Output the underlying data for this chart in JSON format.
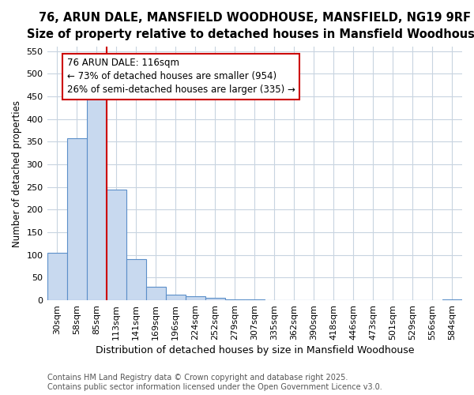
{
  "title": "76, ARUN DALE, MANSFIELD WOODHOUSE, MANSFIELD, NG19 9RF",
  "subtitle": "Size of property relative to detached houses in Mansfield Woodhouse",
  "xlabel": "Distribution of detached houses by size in Mansfield Woodhouse",
  "ylabel": "Number of detached properties",
  "bar_labels": [
    "30sqm",
    "58sqm",
    "85sqm",
    "113sqm",
    "141sqm",
    "169sqm",
    "196sqm",
    "224sqm",
    "252sqm",
    "279sqm",
    "307sqm",
    "335sqm",
    "362sqm",
    "390sqm",
    "418sqm",
    "446sqm",
    "473sqm",
    "501sqm",
    "529sqm",
    "556sqm",
    "584sqm"
  ],
  "bar_values": [
    104,
    357,
    455,
    245,
    91,
    30,
    13,
    8,
    5,
    2,
    1,
    0,
    0,
    0,
    0,
    0,
    0,
    0,
    0,
    0,
    2
  ],
  "bar_color": "#c8d9ef",
  "bar_edge_color": "#5b8fc9",
  "vline_x_idx": 2.5,
  "vline_color": "#cc0000",
  "annotation_text": "76 ARUN DALE: 116sqm\n← 73% of detached houses are smaller (954)\n26% of semi-detached houses are larger (335) →",
  "annotation_box_color": "#ffffff",
  "annotation_box_edge": "#cc0000",
  "ylim": [
    0,
    560
  ],
  "yticks": [
    0,
    50,
    100,
    150,
    200,
    250,
    300,
    350,
    400,
    450,
    500,
    550
  ],
  "bg_color": "#ffffff",
  "plot_bg_color": "#ffffff",
  "grid_color": "#c8d4e0",
  "footer": "Contains HM Land Registry data © Crown copyright and database right 2025.\nContains public sector information licensed under the Open Government Licence v3.0.",
  "title_fontsize": 10.5,
  "subtitle_fontsize": 9.5,
  "xlabel_fontsize": 9,
  "ylabel_fontsize": 8.5,
  "tick_fontsize": 8,
  "footer_fontsize": 7,
  "annotation_fontsize": 8.5
}
